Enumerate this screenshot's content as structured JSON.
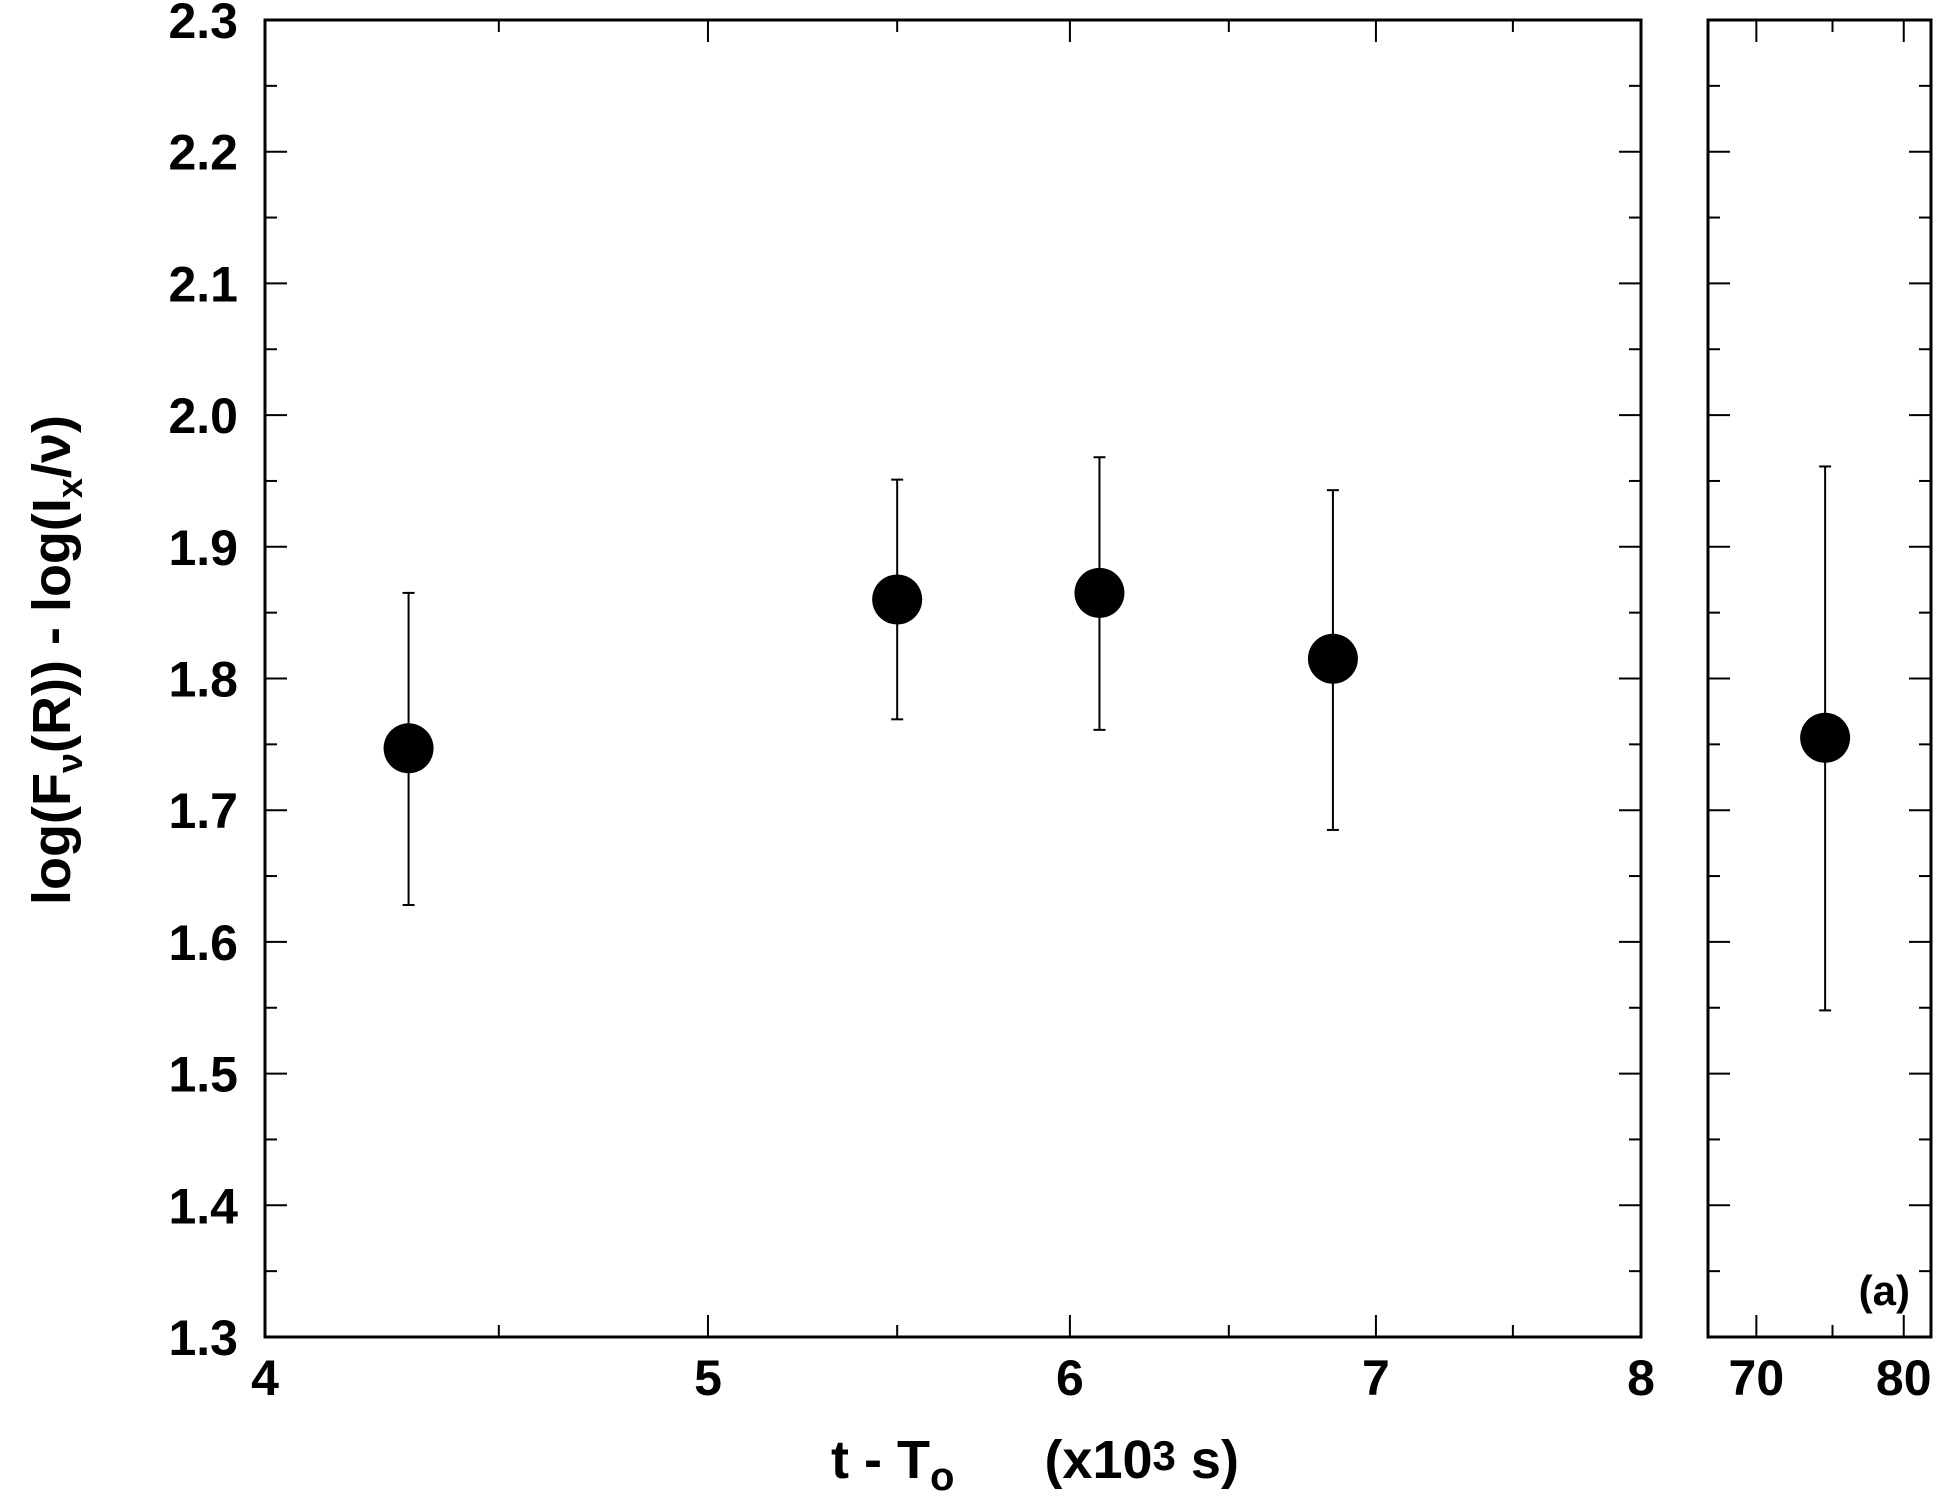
{
  "chart_data": {
    "type": "scatter",
    "xlabel": {
      "main": "t - T",
      "sub": "o",
      "unit_prefix": "(x10",
      "unit_sup": "3",
      "unit_suffix": " s)"
    },
    "ylabel": {
      "p1": "log(F",
      "s1": "ν",
      "p2": "(R)) - log(I",
      "s2": "x",
      "p3": "/ν)"
    },
    "ylim": [
      1.3,
      2.3
    ],
    "y_ticks": [
      "1.3",
      "1.4",
      "1.5",
      "1.6",
      "1.7",
      "1.8",
      "1.9",
      "2.0",
      "2.1",
      "2.2",
      "2.3"
    ],
    "y_tick_values": [
      1.3,
      1.4,
      1.5,
      1.6,
      1.7,
      1.8,
      1.9,
      2.0,
      2.1,
      2.2,
      2.3
    ],
    "x_scale": "log",
    "grid": false,
    "panels": [
      {
        "xlim": [
          4,
          8
        ],
        "x_ticks": [
          "4",
          "5",
          "6",
          "7",
          "8"
        ],
        "x_tick_values": [
          4,
          5,
          6,
          7,
          8
        ],
        "points": [
          {
            "x": 4.3,
            "y": 1.747,
            "yerr_low": 1.628,
            "yerr_high": 1.865
          },
          {
            "x": 5.5,
            "y": 1.86,
            "yerr_low": 1.769,
            "yerr_high": 1.951
          },
          {
            "x": 6.09,
            "y": 1.865,
            "yerr_low": 1.761,
            "yerr_high": 1.968
          },
          {
            "x": 6.85,
            "y": 1.815,
            "yerr_low": 1.685,
            "yerr_high": 1.943
          }
        ]
      },
      {
        "xlim": [
          67,
          82
        ],
        "x_ticks": [
          "70",
          "80"
        ],
        "x_tick_values": [
          70,
          80
        ],
        "label": "(a)",
        "points": [
          {
            "x": 74.5,
            "y": 1.755,
            "yerr_low": 1.548,
            "yerr_high": 1.961
          }
        ]
      }
    ]
  }
}
